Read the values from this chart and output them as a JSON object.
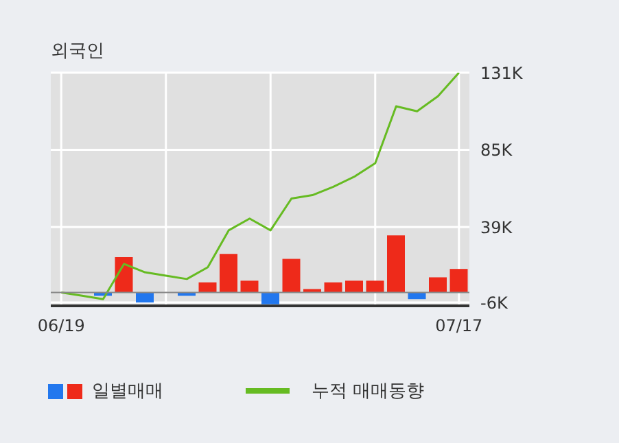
{
  "chart_data": {
    "type": "bar",
    "title": "외국인",
    "categories": [
      "06/19",
      null,
      null,
      null,
      null,
      null,
      null,
      null,
      null,
      null,
      null,
      null,
      null,
      null,
      null,
      null,
      null,
      null,
      null,
      "07/17"
    ],
    "series": [
      {
        "name": "일별매매",
        "colors": [
          "#ee2a1a",
          "#2277ee",
          "#2277ee",
          "#ee2a1a",
          "#2277ee",
          "#2277ee",
          "#2277ee",
          "#ee2a1a",
          "#ee2a1a",
          "#ee2a1a",
          "#2277ee",
          "#ee2a1a",
          "#ee2a1a",
          "#ee2a1a",
          "#ee2a1a",
          "#ee2a1a",
          "#ee2a1a",
          "#2277ee",
          "#ee2a1a",
          "#ee2a1a"
        ],
        "values": [
          null,
          null,
          -2,
          21,
          -6,
          null,
          -2,
          6,
          23,
          7,
          -7,
          20,
          2,
          6,
          7,
          7,
          34,
          -4,
          9,
          14
        ]
      },
      {
        "name": "누적 매매동향",
        "type": "line",
        "color": "#66bb22",
        "values": [
          0,
          -2,
          -4,
          17,
          12,
          10,
          8,
          15,
          37,
          44,
          37,
          56,
          58,
          63,
          69,
          77,
          111,
          108,
          117,
          131
        ]
      }
    ],
    "ylim": [
      -8,
      131
    ],
    "yticks": [
      {
        "value": -6,
        "label": "-6K"
      },
      {
        "value": 39,
        "label": "39K"
      },
      {
        "value": 85,
        "label": "85K"
      },
      {
        "value": 131,
        "label": "131K"
      }
    ],
    "ref_lines": [
      {
        "axis": "y",
        "value": 0,
        "color": "#888888"
      }
    ],
    "grid": true,
    "legend": "bottom"
  }
}
